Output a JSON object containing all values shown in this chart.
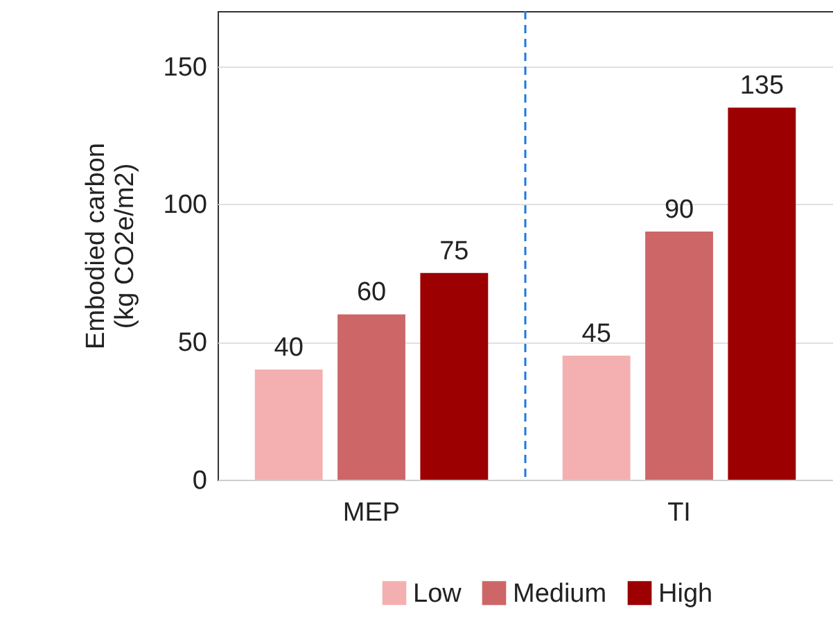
{
  "chart_data": {
    "type": "bar",
    "ylabel": "Embodied carbon\n(kg CO2e/m2)",
    "categories": [
      "MEP",
      "TI"
    ],
    "series": [
      {
        "name": "Low",
        "color": "#f4b0b0",
        "values": [
          40,
          45
        ]
      },
      {
        "name": "Medium",
        "color": "#cd6666",
        "values": [
          60,
          90
        ]
      },
      {
        "name": "High",
        "color": "#9c0000",
        "values": [
          75,
          135
        ]
      }
    ],
    "ylim": [
      0,
      170
    ],
    "yticks": [
      0,
      50,
      100,
      150
    ],
    "grid": "y",
    "ref_lines": [
      {
        "axis": "x",
        "value": "TI",
        "color": "#1f78e0",
        "line_style": "dashed"
      }
    ],
    "legend": "bottom",
    "data_labels": true
  }
}
